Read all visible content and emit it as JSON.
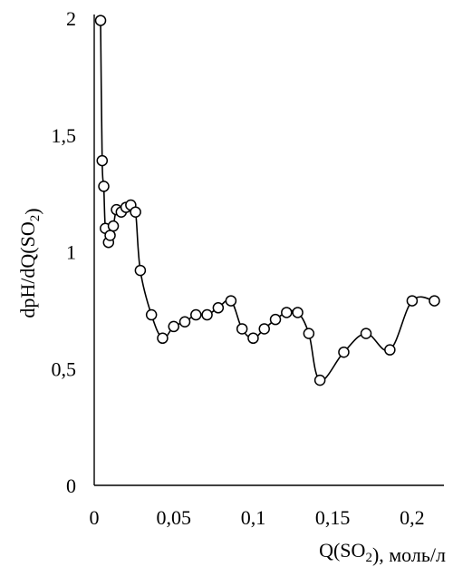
{
  "chart_data": {
    "type": "line",
    "title": "",
    "xlabel": "Q(SO₂), моль/л",
    "ylabel": "dpH/dQ(SO₂)",
    "xlim": [
      0,
      0.22
    ],
    "ylim": [
      0,
      2
    ],
    "xticks": [
      {
        "value": 0,
        "label": "0"
      },
      {
        "value": 0.05,
        "label": "0,05"
      },
      {
        "value": 0.1,
        "label": "0,1"
      },
      {
        "value": 0.15,
        "label": "0,15"
      },
      {
        "value": 0.2,
        "label": "0,2"
      }
    ],
    "yticks": [
      {
        "value": 0,
        "label": "0"
      },
      {
        "value": 0.5,
        "label": "0,5"
      },
      {
        "value": 1,
        "label": "1"
      },
      {
        "value": 1.5,
        "label": "1,5"
      },
      {
        "value": 2,
        "label": "2"
      }
    ],
    "grid": false,
    "legend": "none",
    "marker": "open-circle",
    "series": [
      {
        "x": [
          0.004,
          0.005,
          0.006,
          0.007,
          0.009,
          0.01,
          0.012,
          0.014,
          0.017,
          0.02,
          0.023,
          0.026,
          0.029,
          0.036,
          0.043,
          0.05,
          0.057,
          0.064,
          0.071,
          0.078,
          0.086,
          0.093,
          0.1,
          0.107,
          0.114,
          0.121,
          0.128,
          0.135,
          0.142,
          0.157,
          0.171,
          0.186,
          0.2,
          0.214
        ],
        "y": [
          1.99,
          1.39,
          1.28,
          1.1,
          1.04,
          1.07,
          1.11,
          1.18,
          1.17,
          1.19,
          1.2,
          1.17,
          0.92,
          0.73,
          0.63,
          0.68,
          0.7,
          0.73,
          0.73,
          0.76,
          0.79,
          0.67,
          0.63,
          0.67,
          0.71,
          0.74,
          0.74,
          0.65,
          0.45,
          0.57,
          0.65,
          0.58,
          0.79,
          0.79
        ]
      }
    ]
  }
}
